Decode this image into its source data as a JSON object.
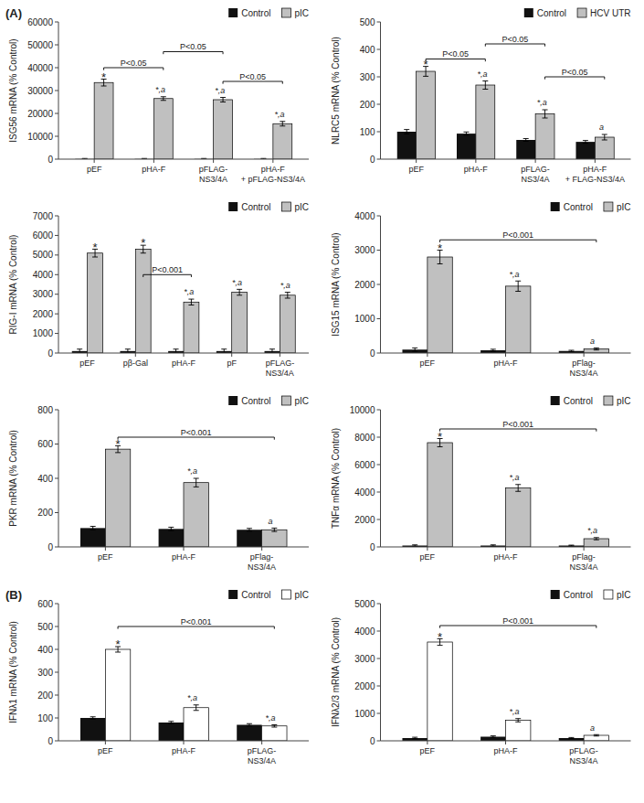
{
  "chart_data": [
    {
      "type": "bar",
      "ylabel": "ISG56 mRNA (% Control)",
      "categories": [
        "pEF",
        "pHA-F",
        "pFLAG-\nNS3/4A",
        "pHA-F\n+ pFLAG-NS3/4A"
      ],
      "series": [
        {
          "name": "Control",
          "color": "#111111",
          "values": [
            100,
            100,
            100,
            100
          ],
          "errors": [
            200,
            200,
            200,
            200
          ]
        },
        {
          "name": "pIC",
          "color": "#c0c0c0",
          "values": [
            33500,
            26500,
            26000,
            15500
          ],
          "errors": [
            1500,
            800,
            1000,
            1000
          ],
          "annotations": [
            "*",
            "*,a",
            "*,a",
            "*,a"
          ]
        }
      ],
      "ylim": [
        0,
        60000
      ],
      "yticks": [
        0,
        10000,
        20000,
        30000,
        40000,
        50000,
        60000
      ],
      "grid": false,
      "legend": "top",
      "brackets": [
        {
          "from": 0,
          "to": 1,
          "y": 40000,
          "label": "P<0.05"
        },
        {
          "from": 1,
          "to": 2,
          "y": 47000,
          "label": "P<0.05"
        },
        {
          "from": 2,
          "to": 3,
          "y": 34000,
          "label": "P<0.05"
        }
      ],
      "annotations": [
        "(A)"
      ]
    },
    {
      "type": "bar",
      "ylabel": "NLRC5 mRNA (% Control)",
      "categories": [
        "pEF",
        "pHA-F",
        "pFLAG-\nNS3/4A",
        "pHA-F\n+ FLAG-NS3/4A"
      ],
      "series": [
        {
          "name": "Control",
          "color": "#111111",
          "values": [
            100,
            93,
            70,
            63
          ],
          "errors": [
            8,
            6,
            5,
            5
          ]
        },
        {
          "name": "HCV UTR",
          "color": "#c0c0c0",
          "values": [
            320,
            270,
            165,
            80
          ],
          "errors": [
            18,
            15,
            15,
            10
          ],
          "annotations": [
            "*",
            "*,a",
            "*,a",
            "a"
          ]
        }
      ],
      "ylim": [
        0,
        500
      ],
      "yticks": [
        0,
        100,
        200,
        300,
        400,
        500
      ],
      "grid": false,
      "legend": "top",
      "brackets": [
        {
          "from": 0,
          "to": 1,
          "y": 365,
          "label": "P<0.05"
        },
        {
          "from": 1,
          "to": 2,
          "y": 420,
          "label": "P<0.05"
        },
        {
          "from": 2,
          "to": 3,
          "y": 300,
          "label": "P<0.05"
        }
      ]
    },
    {
      "type": "bar",
      "ylabel": "RIG-I mRNA (% Control)",
      "categories": [
        "pEF",
        "pβ-Gal",
        "pHA-F",
        "pF",
        "pFLAG-\nNS3/4A"
      ],
      "series": [
        {
          "name": "Control",
          "color": "#111111",
          "values": [
            100,
            100,
            100,
            100,
            100
          ],
          "errors": [
            100,
            100,
            100,
            100,
            100
          ]
        },
        {
          "name": "pIC",
          "color": "#c0c0c0",
          "values": [
            5100,
            5300,
            2600,
            3100,
            2950
          ],
          "errors": [
            200,
            200,
            150,
            150,
            150
          ],
          "annotations": [
            "*",
            "*",
            "*,a",
            "*,a",
            "*,a"
          ]
        }
      ],
      "ylim": [
        0,
        7000
      ],
      "yticks": [
        0,
        1000,
        2000,
        3000,
        4000,
        5000,
        6000,
        7000
      ],
      "grid": false,
      "legend": "top",
      "brackets": [
        {
          "from": 1,
          "to": 2,
          "y": 4000,
          "label": "P<0.001"
        }
      ]
    },
    {
      "type": "bar",
      "ylabel": "ISG15 mRNA (% Control)",
      "categories": [
        "pEF",
        "pHA-F",
        "pFlag-\nNS3/4A"
      ],
      "series": [
        {
          "name": "Control",
          "color": "#111111",
          "values": [
            100,
            80,
            60
          ],
          "errors": [
            50,
            30,
            20
          ]
        },
        {
          "name": "pIC",
          "color": "#c0c0c0",
          "values": [
            2800,
            1950,
            120
          ],
          "errors": [
            200,
            150,
            30
          ],
          "annotations": [
            "*",
            "*,a",
            "a"
          ]
        }
      ],
      "ylim": [
        0,
        4000
      ],
      "yticks": [
        0,
        1000,
        2000,
        3000,
        4000
      ],
      "grid": false,
      "legend": "top",
      "brackets": [
        {
          "from": 0,
          "to": 2,
          "y": 3300,
          "label": "P<0.001"
        }
      ]
    },
    {
      "type": "bar",
      "ylabel": "PKR mRNA (% Control)",
      "categories": [
        "pEF",
        "pHA-F",
        "pFlag-\nNS3/4A"
      ],
      "series": [
        {
          "name": "Control",
          "color": "#111111",
          "values": [
            110,
            105,
            100
          ],
          "errors": [
            10,
            10,
            8
          ]
        },
        {
          "name": "pIC",
          "color": "#c0c0c0",
          "values": [
            570,
            375,
            100
          ],
          "errors": [
            20,
            25,
            10
          ],
          "annotations": [
            "*",
            "*,a",
            "a"
          ]
        }
      ],
      "ylim": [
        0,
        800
      ],
      "yticks": [
        0,
        200,
        400,
        600,
        800
      ],
      "grid": false,
      "legend": "top",
      "brackets": [
        {
          "from": 0,
          "to": 2,
          "y": 640,
          "label": "P<0.001"
        }
      ]
    },
    {
      "type": "bar",
      "ylabel": "TNFα mRNA (% Control)",
      "categories": [
        "pEF",
        "pHA-F",
        "pFlag-\nNS3/4A"
      ],
      "series": [
        {
          "name": "Control",
          "color": "#111111",
          "values": [
            100,
            100,
            100
          ],
          "errors": [
            50,
            50,
            30
          ]
        },
        {
          "name": "pIC",
          "color": "#c0c0c0",
          "values": [
            7600,
            4300,
            600
          ],
          "errors": [
            300,
            250,
            80
          ],
          "annotations": [
            "*",
            "*,a",
            "*,a"
          ]
        }
      ],
      "ylim": [
        0,
        10000
      ],
      "yticks": [
        0,
        2000,
        4000,
        6000,
        8000,
        10000
      ],
      "grid": false,
      "legend": "top",
      "brackets": [
        {
          "from": 0,
          "to": 2,
          "y": 8600,
          "label": "P<0.001"
        }
      ]
    },
    {
      "type": "bar",
      "ylabel": "IFNλ1 mRNA (% Control)",
      "categories": [
        "pEF",
        "pHA-F",
        "pFLAG-\nNS3/4A"
      ],
      "series": [
        {
          "name": "Control",
          "color": "#111111",
          "values": [
            100,
            80,
            70
          ],
          "errors": [
            5,
            5,
            5
          ]
        },
        {
          "name": "pIC",
          "color": "#ffffff",
          "values": [
            400,
            145,
            65
          ],
          "errors": [
            12,
            12,
            5
          ],
          "annotations": [
            "*",
            "*,a",
            "*,a"
          ]
        }
      ],
      "ylim": [
        0,
        600
      ],
      "yticks": [
        0,
        100,
        200,
        300,
        400,
        500,
        600
      ],
      "grid": false,
      "legend": "top",
      "brackets": [
        {
          "from": 0,
          "to": 2,
          "y": 500,
          "label": "P<0.001"
        }
      ],
      "annotations": [
        "(B)"
      ]
    },
    {
      "type": "bar",
      "ylabel": "IFNλ2/3 mRNA (% Control)",
      "categories": [
        "pEF",
        "pHA-F",
        "pFLAG-\nNS3/4A"
      ],
      "series": [
        {
          "name": "Control",
          "color": "#111111",
          "values": [
            100,
            150,
            100
          ],
          "errors": [
            30,
            30,
            20
          ]
        },
        {
          "name": "pIC",
          "color": "#ffffff",
          "values": [
            3600,
            750,
            200
          ],
          "errors": [
            120,
            60,
            25
          ],
          "annotations": [
            "*",
            "*,a",
            "a"
          ]
        }
      ],
      "ylim": [
        0,
        5000
      ],
      "yticks": [
        0,
        1000,
        2000,
        3000,
        4000,
        5000
      ],
      "grid": false,
      "legend": "top",
      "brackets": [
        {
          "from": 0,
          "to": 2,
          "y": 4200,
          "label": "P<0.001"
        }
      ]
    }
  ]
}
